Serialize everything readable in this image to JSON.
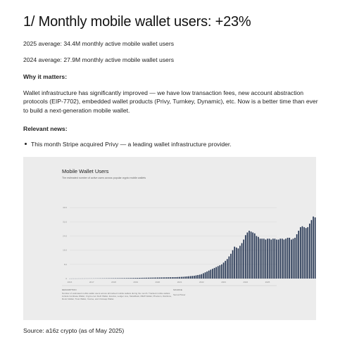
{
  "title": "1/ Monthly mobile wallet users: +23%",
  "stats": {
    "line_2025": "2025 average: 34.4M monthly active mobile wallet users",
    "line_2024": "2024 average: 27.9M monthly active mobile wallet users"
  },
  "why": {
    "heading": "Why it matters:",
    "body": "Wallet infrastructure has significantly improved — we have low transaction fees, new account abstraction protocols (EIP-7702), embedded wallet products (Privy, Turnkey, Dynamic), etc. Now is a better time than ever to build a next-generation mobile wallet."
  },
  "news": {
    "heading": "Relevant news:",
    "items": [
      "This month Stripe acquired Privy — a leading wallet infrastructure provider."
    ]
  },
  "chart_data": {
    "type": "bar",
    "title": "Mobile Wallet Users",
    "subtitle": "The estimated number of active users across popular crypto mobile wallets",
    "color": "#1e2f4d",
    "ylim": [
      0,
      50
    ],
    "y_ticks": [
      "0",
      "8.0",
      "16.0",
      "24.0",
      "32.0",
      "40.0"
    ],
    "x_ticks": [
      "2016",
      "2017",
      "2018",
      "2019",
      "2020",
      "2021",
      "2022",
      "2023",
      "2024",
      "2025"
    ],
    "x_start": 2016.0,
    "bar_step_years": 0.08333,
    "values": [
      0.02,
      0.02,
      0.03,
      0.03,
      0.03,
      0.04,
      0.04,
      0.05,
      0.05,
      0.06,
      0.06,
      0.07,
      0.07,
      0.08,
      0.09,
      0.1,
      0.11,
      0.12,
      0.13,
      0.14,
      0.15,
      0.16,
      0.17,
      0.18,
      0.19,
      0.2,
      0.21,
      0.22,
      0.23,
      0.24,
      0.25,
      0.26,
      0.28,
      0.3,
      0.32,
      0.34,
      0.36,
      0.38,
      0.4,
      0.42,
      0.44,
      0.46,
      0.48,
      0.5,
      0.52,
      0.54,
      0.56,
      0.58,
      0.6,
      0.62,
      0.64,
      0.66,
      0.68,
      0.7,
      0.72,
      0.74,
      0.76,
      0.78,
      0.8,
      0.85,
      0.9,
      0.95,
      1.0,
      1.1,
      1.2,
      1.3,
      1.4,
      1.5,
      1.6,
      1.8,
      2.0,
      2.2,
      2.5,
      3.0,
      3.5,
      4.0,
      4.5,
      5.0,
      5.5,
      6.0,
      6.5,
      7.0,
      7.5,
      8.0,
      9.0,
      10.0,
      11.0,
      12.5,
      14.0,
      16.0,
      18.0,
      17.5,
      17.0,
      18.5,
      20.0,
      22.0,
      24.5,
      26.0,
      27.0,
      26.5,
      26.0,
      25.5,
      24.0,
      23.5,
      22.5,
      22.5,
      22.5,
      22.0,
      22.5,
      22.5,
      22.0,
      22.5,
      22.5,
      22.0,
      22.0,
      22.5,
      22.5,
      22.0,
      22.5,
      23.0,
      23.0,
      22.0,
      22.5,
      23.0,
      25.0,
      27.0,
      29.0,
      29.5,
      29.0,
      28.5,
      29.0,
      31.0,
      33.0,
      35.0,
      34.5,
      32.0,
      33.0,
      32.0,
      31.5,
      32.0
    ],
    "footer": {
      "description_label": "DESCRIPTION",
      "description_text": "Number of estimated mobile wallet users across all tracked mobile wallets during the month. Tracked mobile wallets include Coinbase Wallet, Crypto.com DeFi Wallet, Exodus, Ledger Live, MetaMask, MEW Wallet, Phantom, Rainbow, Ronin Wallet, Trust Wallet, Xverse, and Uniswap Wallet.",
      "source_label": "SOURCE",
      "source_text": "SensorTower"
    }
  },
  "source_note": "Source: a16z crypto (as of May 2025)"
}
